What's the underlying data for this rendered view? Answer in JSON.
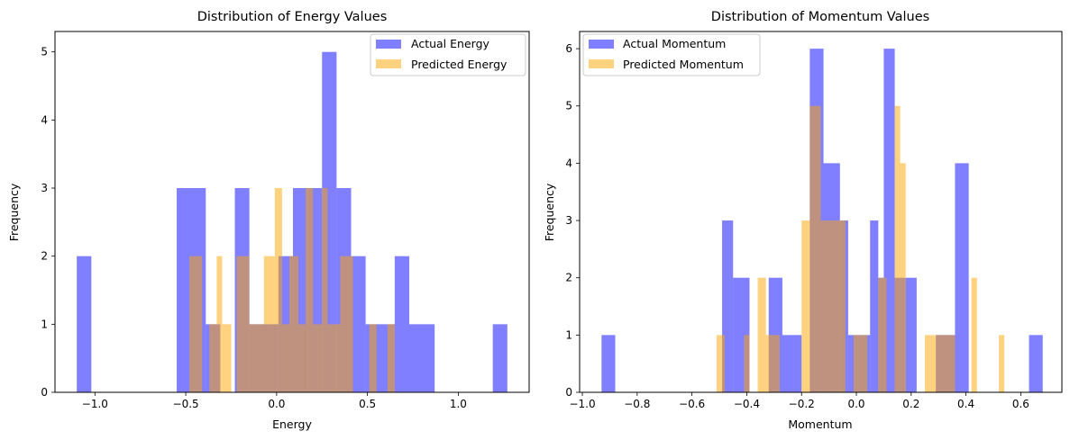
{
  "chart_data": [
    {
      "type": "histogram",
      "title": "Distribution of Energy Values",
      "xlabel": "Energy",
      "ylabel": "Frequency",
      "xlim": [
        -1.22,
        1.39
      ],
      "ylim": [
        0,
        5.3
      ],
      "xticks": [
        -1.0,
        -0.5,
        0.0,
        0.5,
        1.0
      ],
      "xtick_labels": [
        "−1.0",
        "−0.5",
        "0.0",
        "0.5",
        "1.0"
      ],
      "yticks": [
        0,
        1,
        2,
        3,
        4,
        5
      ],
      "legend_position": "top-right",
      "series": [
        {
          "name": "Actual Energy",
          "color": "#0000ff",
          "alpha": 0.5,
          "bins": [
            {
              "x0": -1.1,
              "x1": -1.02,
              "count": 2
            },
            {
              "x0": -0.55,
              "x1": -0.39,
              "count": 3
            },
            {
              "x0": -0.39,
              "x1": -0.31,
              "count": 1
            },
            {
              "x0": -0.23,
              "x1": -0.15,
              "count": 3
            },
            {
              "x0": -0.15,
              "x1": 0.01,
              "count": 1
            },
            {
              "x0": 0.01,
              "x1": 0.09,
              "count": 2
            },
            {
              "x0": 0.09,
              "x1": 0.17,
              "count": 3
            },
            {
              "x0": 0.17,
              "x1": 0.25,
              "count": 3
            },
            {
              "x0": 0.25,
              "x1": 0.33,
              "count": 5
            },
            {
              "x0": 0.33,
              "x1": 0.41,
              "count": 3
            },
            {
              "x0": 0.41,
              "x1": 0.49,
              "count": 2
            },
            {
              "x0": 0.49,
              "x1": 0.65,
              "count": 1
            },
            {
              "x0": 0.65,
              "x1": 0.73,
              "count": 2
            },
            {
              "x0": 0.73,
              "x1": 0.87,
              "count": 1
            },
            {
              "x0": 1.19,
              "x1": 1.27,
              "count": 1
            }
          ]
        },
        {
          "name": "Predicted Energy",
          "color": "#ffa500",
          "alpha": 0.5,
          "bins": [
            {
              "x0": -0.48,
              "x1": -0.41,
              "count": 2
            },
            {
              "x0": -0.37,
              "x1": -0.33,
              "count": 1
            },
            {
              "x0": -0.33,
              "x1": -0.3,
              "count": 2
            },
            {
              "x0": -0.3,
              "x1": -0.25,
              "count": 1
            },
            {
              "x0": -0.22,
              "x1": -0.15,
              "count": 2
            },
            {
              "x0": -0.15,
              "x1": -0.07,
              "count": 1
            },
            {
              "x0": -0.07,
              "x1": -0.01,
              "count": 2
            },
            {
              "x0": -0.01,
              "x1": 0.03,
              "count": 3
            },
            {
              "x0": 0.03,
              "x1": 0.07,
              "count": 1
            },
            {
              "x0": 0.07,
              "x1": 0.12,
              "count": 2
            },
            {
              "x0": 0.12,
              "x1": 0.16,
              "count": 1
            },
            {
              "x0": 0.16,
              "x1": 0.2,
              "count": 3
            },
            {
              "x0": 0.2,
              "x1": 0.25,
              "count": 1
            },
            {
              "x0": 0.25,
              "x1": 0.28,
              "count": 3
            },
            {
              "x0": 0.28,
              "x1": 0.35,
              "count": 1
            },
            {
              "x0": 0.35,
              "x1": 0.42,
              "count": 2
            },
            {
              "x0": 0.51,
              "x1": 0.55,
              "count": 1
            },
            {
              "x0": 0.61,
              "x1": 0.65,
              "count": 1
            }
          ]
        }
      ]
    },
    {
      "type": "histogram",
      "title": "Distribution of Momentum Values",
      "xlabel": "Momentum",
      "ylabel": "Frequency",
      "xlim": [
        -1.01,
        0.75
      ],
      "ylim": [
        0,
        6.3
      ],
      "xticks": [
        -1.0,
        -0.8,
        -0.6,
        -0.4,
        -0.2,
        0.0,
        0.2,
        0.4,
        0.6
      ],
      "xtick_labels": [
        "−1.0",
        "−0.8",
        "−0.6",
        "−0.4",
        "−0.2",
        "0.0",
        "0.2",
        "0.4",
        "0.6"
      ],
      "yticks": [
        0,
        1,
        2,
        3,
        4,
        5,
        6
      ],
      "legend_position": "top-left",
      "series": [
        {
          "name": "Actual Momentum",
          "color": "#0000ff",
          "alpha": 0.5,
          "bins": [
            {
              "x0": -0.93,
              "x1": -0.88,
              "count": 1
            },
            {
              "x0": -0.49,
              "x1": -0.45,
              "count": 3
            },
            {
              "x0": -0.45,
              "x1": -0.39,
              "count": 2
            },
            {
              "x0": -0.32,
              "x1": -0.27,
              "count": 2
            },
            {
              "x0": -0.27,
              "x1": -0.23,
              "count": 1
            },
            {
              "x0": -0.23,
              "x1": -0.2,
              "count": 1
            },
            {
              "x0": -0.17,
              "x1": -0.12,
              "count": 6
            },
            {
              "x0": -0.12,
              "x1": -0.06,
              "count": 4
            },
            {
              "x0": -0.06,
              "x1": -0.03,
              "count": 3
            },
            {
              "x0": -0.03,
              "x1": 0.01,
              "count": 1
            },
            {
              "x0": 0.01,
              "x1": 0.05,
              "count": 1
            },
            {
              "x0": 0.05,
              "x1": 0.08,
              "count": 3
            },
            {
              "x0": 0.08,
              "x1": 0.1,
              "count": 2
            },
            {
              "x0": 0.1,
              "x1": 0.14,
              "count": 6
            },
            {
              "x0": 0.14,
              "x1": 0.18,
              "count": 2
            },
            {
              "x0": 0.18,
              "x1": 0.22,
              "count": 2
            },
            {
              "x0": 0.29,
              "x1": 0.36,
              "count": 1
            },
            {
              "x0": 0.36,
              "x1": 0.41,
              "count": 4
            },
            {
              "x0": 0.63,
              "x1": 0.68,
              "count": 1
            }
          ]
        },
        {
          "name": "Predicted Momentum",
          "color": "#ffa500",
          "alpha": 0.5,
          "bins": [
            {
              "x0": -0.51,
              "x1": -0.48,
              "count": 1
            },
            {
              "x0": -0.41,
              "x1": -0.39,
              "count": 1
            },
            {
              "x0": -0.36,
              "x1": -0.33,
              "count": 2
            },
            {
              "x0": -0.33,
              "x1": -0.28,
              "count": 1
            },
            {
              "x0": -0.2,
              "x1": -0.17,
              "count": 3
            },
            {
              "x0": -0.17,
              "x1": -0.13,
              "count": 5
            },
            {
              "x0": -0.13,
              "x1": -0.04,
              "count": 3
            },
            {
              "x0": -0.01,
              "x1": 0.04,
              "count": 1
            },
            {
              "x0": 0.08,
              "x1": 0.11,
              "count": 2
            },
            {
              "x0": 0.14,
              "x1": 0.16,
              "count": 5
            },
            {
              "x0": 0.16,
              "x1": 0.18,
              "count": 4
            },
            {
              "x0": 0.25,
              "x1": 0.29,
              "count": 1
            },
            {
              "x0": 0.29,
              "x1": 0.36,
              "count": 1
            },
            {
              "x0": 0.42,
              "x1": 0.44,
              "count": 2
            },
            {
              "x0": 0.52,
              "x1": 0.54,
              "count": 1
            }
          ]
        }
      ]
    }
  ]
}
